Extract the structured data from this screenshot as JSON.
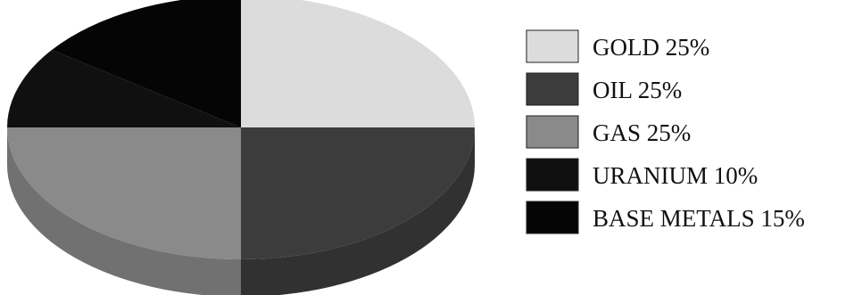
{
  "chart_data": {
    "type": "pie",
    "title": "",
    "legend_position": "right",
    "slices": [
      {
        "label": "GOLD 25%",
        "value": 25,
        "color": "#dcdcdc"
      },
      {
        "label": "OIL 25%",
        "value": 25,
        "color": "#3c3c3c"
      },
      {
        "label": "GAS 25%",
        "value": 25,
        "color": "#8a8a8a"
      },
      {
        "label": "URANIUM 10%",
        "value": 10,
        "color": "#101010"
      },
      {
        "label": "BASE METALS 15%",
        "value": 15,
        "color": "#050505"
      }
    ]
  }
}
